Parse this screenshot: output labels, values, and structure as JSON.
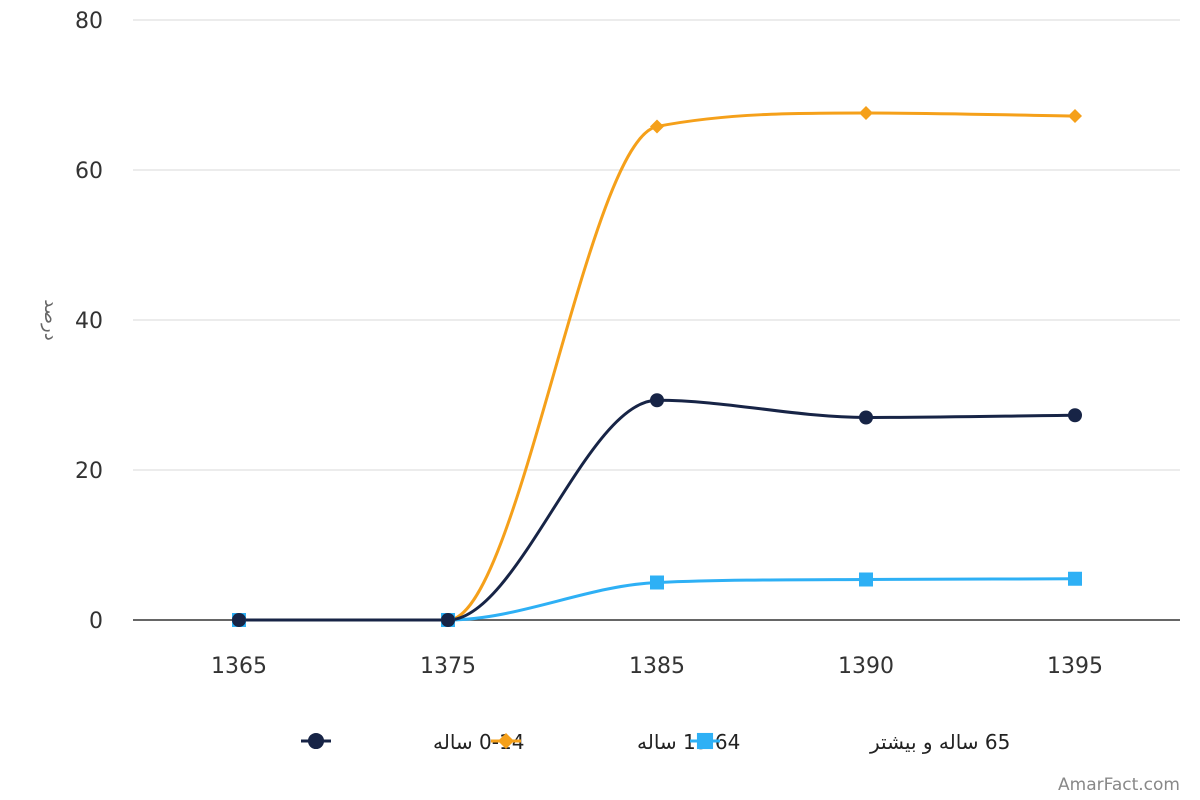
{
  "chart_data": {
    "type": "line",
    "x": [
      "1365",
      "1375",
      "1385",
      "1390",
      "1395"
    ],
    "yticks": [
      "0",
      "20",
      "40",
      "60",
      "80"
    ],
    "ylim": [
      0,
      80
    ],
    "ylabel": "درصد",
    "grid": true,
    "legend_position": "bottom-center",
    "series": [
      {
        "name": "0-14 ساله",
        "color": "#172446",
        "marker": "circle",
        "values": [
          0,
          0,
          29.3,
          27.0,
          27.3
        ]
      },
      {
        "name": "15.64 ساله",
        "color": "#F5A01A",
        "marker": "diamond",
        "values": [
          0,
          0,
          65.8,
          67.6,
          67.2
        ]
      },
      {
        "name": "65 ساله و بیشتر",
        "color": "#2EB0F5",
        "marker": "square",
        "values": [
          0,
          0,
          5.0,
          5.4,
          5.5
        ]
      }
    ]
  },
  "watermark": "AmarFact.com"
}
